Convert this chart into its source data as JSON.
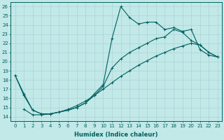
{
  "xlabel": "Humidex (Indice chaleur)",
  "bg_color": "#c2e8e8",
  "grid_color": "#aad4d4",
  "line_color": "#006060",
  "xlim": [
    -0.5,
    23.5
  ],
  "ylim": [
    13.5,
    26.5
  ],
  "xticks": [
    0,
    1,
    2,
    3,
    4,
    5,
    6,
    7,
    8,
    9,
    10,
    11,
    12,
    13,
    14,
    15,
    16,
    17,
    18,
    19,
    20,
    21,
    22,
    23
  ],
  "yticks": [
    14,
    15,
    16,
    17,
    18,
    19,
    20,
    21,
    22,
    23,
    24,
    25,
    26
  ],
  "line1_x": [
    0,
    1,
    2,
    3,
    4,
    5,
    6,
    7,
    8,
    9,
    10,
    11,
    12,
    13,
    14,
    15,
    16,
    17,
    18,
    19,
    20,
    21,
    22,
    23
  ],
  "line1_y": [
    18.5,
    16.5,
    14.7,
    14.3,
    14.3,
    14.5,
    14.7,
    15.0,
    15.5,
    16.5,
    17.5,
    22.5,
    26.0,
    24.8,
    24.1,
    24.3,
    24.3,
    23.5,
    23.7,
    23.3,
    23.5,
    21.3,
    20.7,
    20.5
  ],
  "line2_x": [
    0,
    1,
    2,
    3,
    4,
    5,
    6,
    7,
    8,
    9,
    10,
    11,
    12,
    13,
    14,
    15,
    16,
    17,
    18,
    19,
    20,
    21,
    22,
    23
  ],
  "line2_y": [
    18.5,
    16.3,
    14.7,
    14.3,
    14.3,
    14.5,
    14.7,
    15.0,
    15.5,
    16.3,
    17.3,
    19.3,
    20.3,
    21.0,
    21.5,
    22.0,
    22.5,
    22.7,
    23.5,
    23.2,
    22.3,
    21.8,
    21.0,
    20.5
  ],
  "line3_x": [
    1,
    2,
    3,
    4,
    5,
    6,
    7,
    8,
    9,
    10,
    11,
    12,
    13,
    14,
    15,
    16,
    17,
    18,
    19,
    20,
    21,
    22,
    23
  ],
  "line3_y": [
    14.8,
    14.2,
    14.2,
    14.3,
    14.5,
    14.8,
    15.2,
    15.7,
    16.3,
    17.0,
    17.7,
    18.4,
    19.0,
    19.6,
    20.1,
    20.6,
    21.0,
    21.4,
    21.7,
    22.0,
    21.8,
    21.0,
    20.5
  ]
}
